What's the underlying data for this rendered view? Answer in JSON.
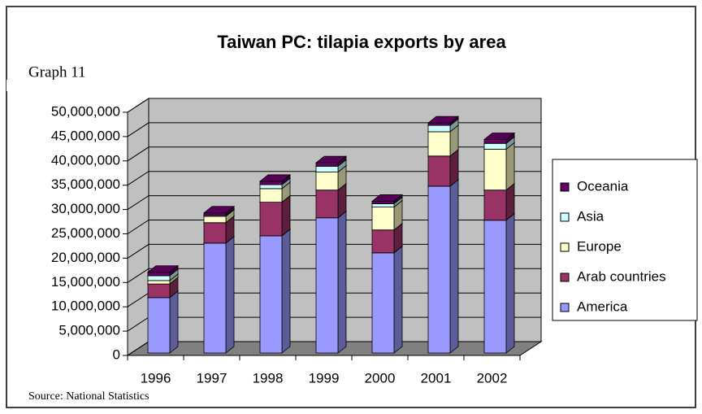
{
  "chart_data": {
    "type": "bar3d_stacked",
    "title": "Taiwan PC: tilapia exports by area",
    "graph_label": "Graph 11",
    "source": "Source: National Statistics",
    "categories": [
      "1996",
      "1997",
      "1998",
      "1999",
      "2000",
      "2001",
      "2002"
    ],
    "series": [
      {
        "name": "America",
        "color": "#9999ff",
        "values": [
          11400000,
          22600000,
          24100000,
          27800000,
          20600000,
          34300000,
          27300000
        ]
      },
      {
        "name": "Arab countries",
        "color": "#993366",
        "values": [
          2800000,
          4200000,
          6900000,
          5700000,
          4700000,
          6200000,
          6200000
        ]
      },
      {
        "name": "Europe",
        "color": "#ffffcc",
        "values": [
          700000,
          1300000,
          2800000,
          3700000,
          4700000,
          5000000,
          8400000
        ]
      },
      {
        "name": "Asia",
        "color": "#ccffff",
        "values": [
          1000000,
          200000,
          800000,
          1200000,
          700000,
          1300000,
          1200000
        ]
      },
      {
        "name": "Oceania",
        "color": "#660066",
        "values": [
          700000,
          500000,
          700000,
          700000,
          500000,
          500000,
          800000
        ]
      }
    ],
    "ylim": [
      0,
      50000000
    ],
    "yticks": [
      0,
      {
        "value": 5000000,
        "label": "5,000,000"
      },
      {
        "value": 10000000,
        "label": "10,000,000"
      },
      {
        "value": 15000000,
        "label": "15,000,000"
      },
      {
        "value": 20000000,
        "label": "20,000,000"
      },
      {
        "value": 25000000,
        "label": "25,000,000"
      },
      {
        "value": 30000000,
        "label": "30,000,000"
      },
      {
        "value": 35000000,
        "label": "35,000,000"
      },
      {
        "value": 40000000,
        "label": "40,000,000"
      },
      {
        "value": 45000000,
        "label": "45,000,000"
      },
      {
        "value": 50000000,
        "label": "50,000,000"
      }
    ],
    "grid": true,
    "legend": "right"
  }
}
